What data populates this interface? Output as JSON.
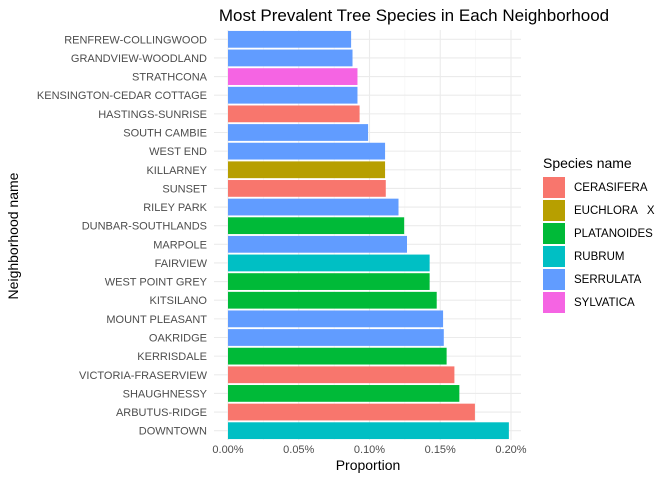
{
  "chart_data": {
    "type": "bar",
    "orientation": "horizontal",
    "title": "Most Prevalent Tree Species in Each Neighborhood",
    "xlabel": "Proportion",
    "ylabel": "Neighborhood name",
    "xlim": [
      0,
      0.002
    ],
    "x_ticks": [
      {
        "value": 0,
        "label": "0.00%"
      },
      {
        "value": 0.0005,
        "label": "0.05%"
      },
      {
        "value": 0.001,
        "label": "0.10%"
      },
      {
        "value": 0.0015,
        "label": "0.15%"
      },
      {
        "value": 0.002,
        "label": "0.20%"
      }
    ],
    "grid": true,
    "legend": {
      "title": "Species name",
      "position": "right",
      "entries": [
        {
          "name": "CERASIFERA",
          "color": "#F8766D"
        },
        {
          "name": "EUCHLORA   X",
          "color": "#B79F00"
        },
        {
          "name": "PLATANOIDES",
          "color": "#00BA38"
        },
        {
          "name": "RUBRUM",
          "color": "#00BFC4"
        },
        {
          "name": "SERRULATA",
          "color": "#619CFF"
        },
        {
          "name": "SYLVATICA",
          "color": "#F564E3"
        }
      ]
    },
    "bars": [
      {
        "category": "RENFREW-COLLINGWOOD",
        "value": 0.00087,
        "species": "SERRULATA"
      },
      {
        "category": "GRANDVIEW-WOODLAND",
        "value": 0.00088,
        "species": "SERRULATA"
      },
      {
        "category": "STRATHCONA",
        "value": 0.000915,
        "species": "SYLVATICA"
      },
      {
        "category": "KENSINGTON-CEDAR COTTAGE",
        "value": 0.000915,
        "species": "SERRULATA"
      },
      {
        "category": "HASTINGS-SUNRISE",
        "value": 0.00093,
        "species": "CERASIFERA"
      },
      {
        "category": "SOUTH CAMBIE",
        "value": 0.00099,
        "species": "SERRULATA"
      },
      {
        "category": "WEST END",
        "value": 0.00111,
        "species": "SERRULATA"
      },
      {
        "category": "KILLARNEY",
        "value": 0.00111,
        "species": "EUCHLORA   X"
      },
      {
        "category": "SUNSET",
        "value": 0.001115,
        "species": "CERASIFERA"
      },
      {
        "category": "RILEY PARK",
        "value": 0.001205,
        "species": "SERRULATA"
      },
      {
        "category": "DUNBAR-SOUTHLANDS",
        "value": 0.001245,
        "species": "PLATANOIDES"
      },
      {
        "category": "MARPOLE",
        "value": 0.001265,
        "species": "SERRULATA"
      },
      {
        "category": "FAIRVIEW",
        "value": 0.001425,
        "species": "RUBRUM"
      },
      {
        "category": "WEST POINT GREY",
        "value": 0.001425,
        "species": "PLATANOIDES"
      },
      {
        "category": "KITSILANO",
        "value": 0.001475,
        "species": "PLATANOIDES"
      },
      {
        "category": "MOUNT PLEASANT",
        "value": 0.00152,
        "species": "SERRULATA"
      },
      {
        "category": "OAKRIDGE",
        "value": 0.001525,
        "species": "SERRULATA"
      },
      {
        "category": "KERRISDALE",
        "value": 0.001545,
        "species": "PLATANOIDES"
      },
      {
        "category": "VICTORIA-FRASERVIEW",
        "value": 0.0016,
        "species": "CERASIFERA"
      },
      {
        "category": "SHAUGHNESSY",
        "value": 0.001635,
        "species": "PLATANOIDES"
      },
      {
        "category": "ARBUTUS-RIDGE",
        "value": 0.001745,
        "species": "CERASIFERA"
      },
      {
        "category": "DOWNTOWN",
        "value": 0.001985,
        "species": "RUBRUM"
      }
    ]
  }
}
